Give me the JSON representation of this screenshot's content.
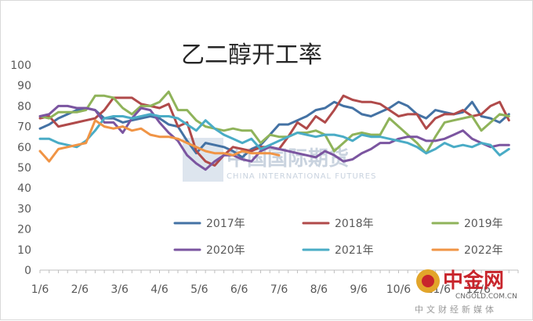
{
  "chart_data": {
    "type": "line",
    "title": "乙二醇开工率",
    "xlabel": "",
    "ylabel": "",
    "ylim": [
      0,
      100
    ],
    "yticks": [
      0,
      10,
      20,
      30,
      40,
      50,
      60,
      70,
      80,
      90,
      100
    ],
    "x_tick_labels": [
      "1/6",
      "2/6",
      "3/6",
      "4/6",
      "5/6",
      "6/6",
      "7/6",
      "8/6",
      "9/6",
      "10/6",
      "11/6",
      "12/6"
    ],
    "x_unit": "week",
    "xlim": [
      0,
      52
    ],
    "grid": false,
    "legend_position": "bottom",
    "series": [
      {
        "name": "2017年",
        "color": "#4472a4",
        "values": [
          69,
          71,
          74,
          76,
          78,
          79,
          78,
          74,
          74,
          72,
          73,
          74,
          75,
          74,
          71,
          70,
          63,
          57,
          62,
          61,
          60,
          58,
          55,
          59,
          61,
          66,
          71,
          71,
          73,
          75,
          78,
          79,
          82,
          80,
          79,
          76,
          75,
          77,
          79,
          82,
          80,
          76,
          74,
          78,
          77,
          76,
          77,
          82,
          75,
          74,
          72,
          76
        ]
      },
      {
        "name": "2018年",
        "color": "#b04a4a",
        "values": [
          74,
          75,
          70,
          71,
          72,
          73,
          74,
          78,
          84,
          84,
          84,
          81,
          80,
          79,
          81,
          70,
          72,
          58,
          53,
          51,
          56,
          60,
          59,
          58,
          60,
          60,
          59,
          65,
          72,
          69,
          75,
          72,
          78,
          85,
          83,
          82,
          82,
          81,
          78,
          75,
          76,
          76,
          69,
          74,
          76,
          76,
          78,
          75,
          76,
          80,
          82,
          73
        ]
      },
      {
        "name": "2019年",
        "color": "#8fb35a",
        "values": [
          75,
          74,
          77,
          77,
          77,
          78,
          85,
          85,
          84,
          79,
          76,
          80,
          80,
          82,
          87,
          78,
          78,
          73,
          70,
          69,
          68,
          69,
          68,
          68,
          62,
          66,
          65,
          65,
          67,
          67,
          68,
          66,
          58,
          62,
          66,
          67,
          66,
          66,
          74,
          70,
          66,
          62,
          57,
          65,
          72,
          73,
          74,
          75,
          68,
          72,
          76,
          75
        ]
      },
      {
        "name": "2020年",
        "color": "#7b55a0",
        "values": [
          75,
          76,
          80,
          80,
          79,
          79,
          78,
          72,
          72,
          67,
          74,
          79,
          78,
          72,
          67,
          63,
          56,
          52,
          49,
          53,
          56,
          56,
          54,
          53,
          58,
          60,
          59,
          58,
          57,
          56,
          55,
          58,
          56,
          53,
          54,
          57,
          59,
          62,
          62,
          64,
          65,
          65,
          63,
          63,
          64,
          66,
          68,
          64,
          62,
          60,
          61,
          61
        ]
      },
      {
        "name": "2021年",
        "color": "#4aacc6",
        "values": [
          64,
          64,
          62,
          61,
          60,
          63,
          68,
          74,
          75,
          75,
          74,
          75,
          76,
          75,
          75,
          74,
          71,
          68,
          73,
          69,
          66,
          64,
          62,
          64,
          59,
          61,
          63,
          65,
          67,
          66,
          65,
          66,
          66,
          65,
          63,
          66,
          65,
          65,
          64,
          63,
          62,
          60,
          57,
          59,
          62,
          60,
          61,
          60,
          62,
          61,
          56,
          59
        ]
      },
      {
        "name": "2022年",
        "color": "#f09445",
        "values": [
          58,
          53,
          59,
          60,
          61,
          62,
          73,
          70,
          69,
          70,
          68,
          69,
          66,
          65,
          65,
          64,
          62,
          60,
          58,
          57,
          57,
          56,
          58,
          57,
          57,
          57,
          56
        ]
      }
    ]
  },
  "watermark": {
    "text_cn": "中国国际期货",
    "text_en": "CHINA INTERNATIONAL FUTURES"
  },
  "logo": {
    "name": "中金网",
    "url": "CNGOLD.COM.CN",
    "subtitle": "中文财经新媒体"
  }
}
